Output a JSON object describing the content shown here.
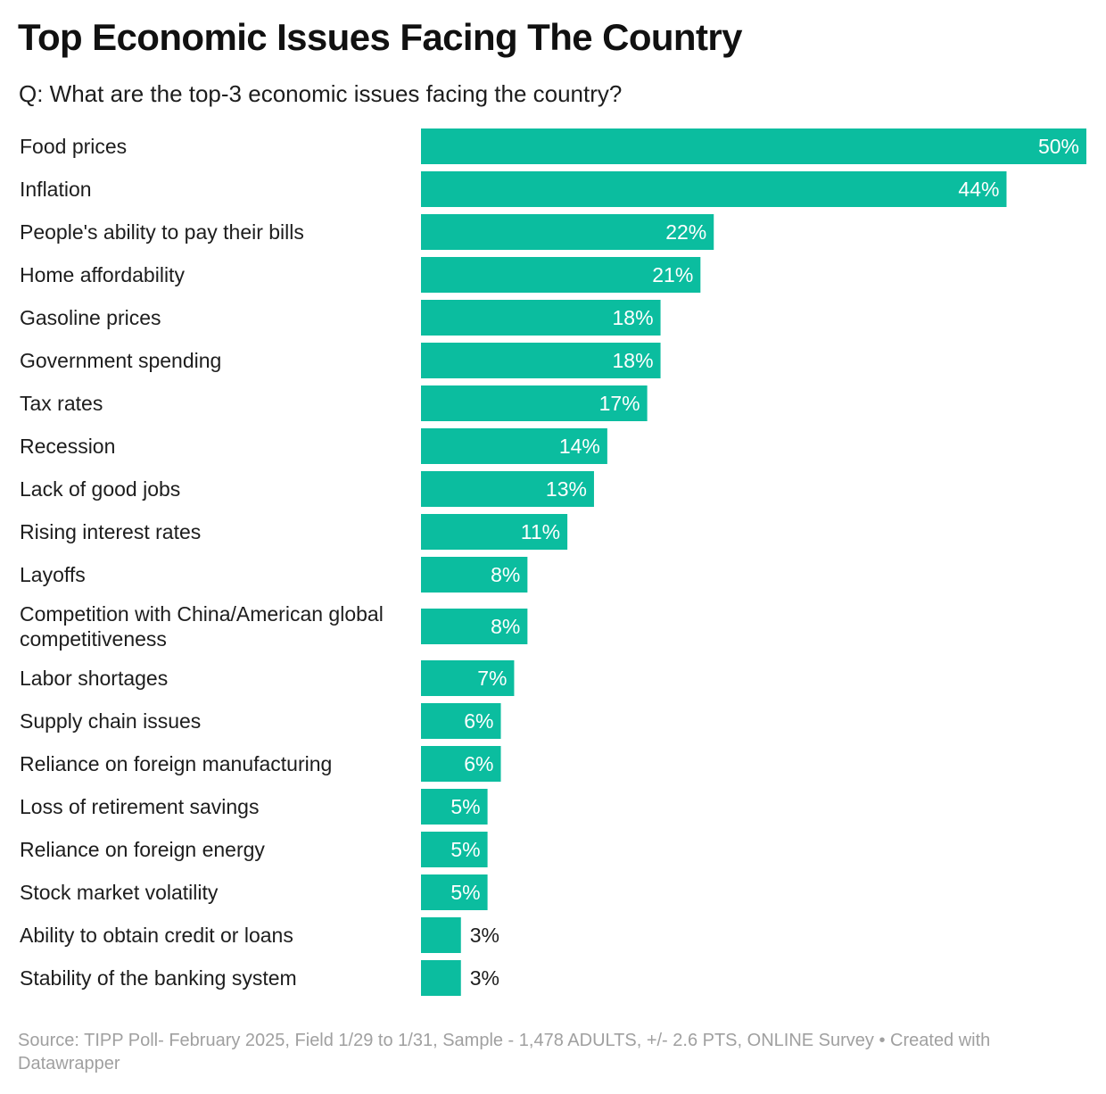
{
  "title": "Top Economic Issues Facing The Country",
  "subtitle": "Q: What are the top-3 economic issues facing the country?",
  "footer": {
    "source": "Source: TIPP Poll- February 2025, Field 1/29 to 1/31, Sample - 1,478 ADULTS, +/- 2.6 PTS, ONLINE Survey",
    "separator": " • ",
    "credit": "Created with Datawrapper"
  },
  "colors": {
    "bar": "#0bbd9f",
    "label_inside": "#ffffff",
    "label_outside": "#1d1d1d"
  },
  "chart_data": {
    "type": "bar",
    "orientation": "horizontal",
    "value_suffix": "%",
    "xlim": [
      0,
      50
    ],
    "grid": false,
    "legend": "none",
    "categories": [
      "Food prices",
      "Inflation",
      "People's ability to pay their bills",
      "Home affordability",
      "Gasoline prices",
      "Government spending",
      "Tax rates",
      "Recession",
      "Lack of good jobs",
      "Rising interest rates",
      "Layoffs",
      "Competition with China/American global competitiveness",
      "Labor shortages",
      "Supply chain issues",
      "Reliance on foreign manufacturing",
      "Loss of retirement savings",
      "Reliance on foreign energy",
      "Stock market volatility",
      "Ability to obtain credit or loans",
      "Stability of the banking system"
    ],
    "values": [
      50,
      44,
      22,
      21,
      18,
      18,
      17,
      14,
      13,
      11,
      8,
      8,
      7,
      6,
      6,
      5,
      5,
      5,
      3,
      3
    ]
  }
}
